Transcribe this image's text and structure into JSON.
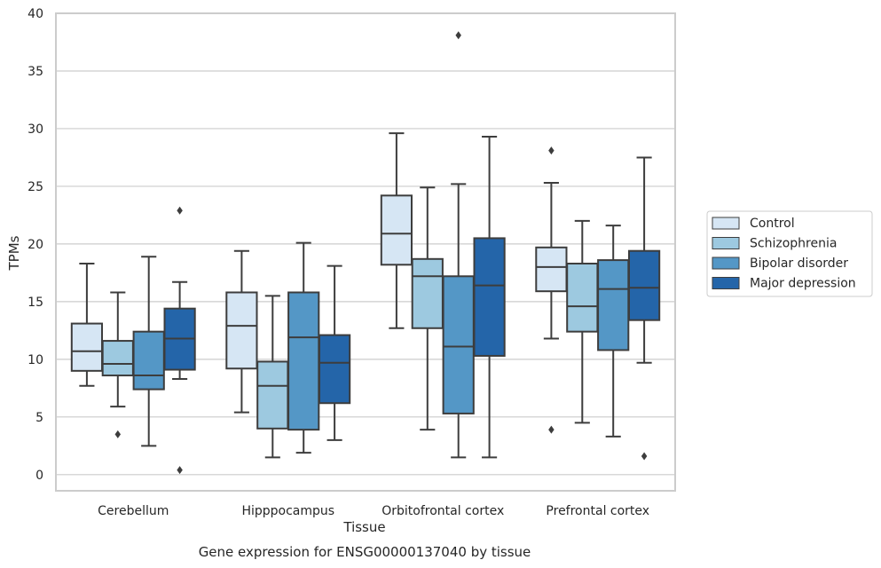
{
  "chart_data": {
    "type": "box",
    "title": "",
    "caption": "Gene expression for ENSG00000137040 by tissue",
    "xlabel": "Tissue",
    "ylabel": "TPMs",
    "ylim": [
      -1.4,
      40
    ],
    "yticks": [
      0,
      5,
      10,
      15,
      20,
      25,
      30,
      35,
      40
    ],
    "grid": "horizontal",
    "legend_position": "right",
    "categories": [
      "Cerebellum",
      "Hipppocampus",
      "Orbitofrontal cortex",
      "Prefrontal cortex"
    ],
    "series": [
      {
        "name": "Control",
        "color": "#d6e6f4",
        "boxes": [
          {
            "whislo": 7.7,
            "q1": 9.0,
            "med": 10.7,
            "q3": 13.1,
            "whishi": 18.3,
            "fliers": []
          },
          {
            "whislo": 5.4,
            "q1": 9.2,
            "med": 12.9,
            "q3": 15.8,
            "whishi": 19.4,
            "fliers": []
          },
          {
            "whislo": 12.7,
            "q1": 18.2,
            "med": 20.9,
            "q3": 24.2,
            "whishi": 29.6,
            "fliers": []
          },
          {
            "whislo": 11.8,
            "q1": 15.9,
            "med": 18.0,
            "q3": 19.7,
            "whishi": 25.3,
            "fliers": [
              28.1,
              3.9
            ]
          }
        ]
      },
      {
        "name": "Schizophrenia",
        "color": "#9dc9e0",
        "boxes": [
          {
            "whislo": 5.9,
            "q1": 8.6,
            "med": 9.6,
            "q3": 11.6,
            "whishi": 15.8,
            "fliers": [
              3.5
            ]
          },
          {
            "whislo": 1.5,
            "q1": 4.0,
            "med": 7.7,
            "q3": 9.8,
            "whishi": 15.5,
            "fliers": []
          },
          {
            "whislo": 3.9,
            "q1": 12.7,
            "med": 17.2,
            "q3": 18.7,
            "whishi": 24.9,
            "fliers": []
          },
          {
            "whislo": 4.5,
            "q1": 12.4,
            "med": 14.6,
            "q3": 18.3,
            "whishi": 22.0,
            "fliers": []
          }
        ]
      },
      {
        "name": "Bipolar disorder",
        "color": "#5497c6",
        "boxes": [
          {
            "whislo": 2.5,
            "q1": 7.4,
            "med": 8.6,
            "q3": 12.4,
            "whishi": 18.9,
            "fliers": []
          },
          {
            "whislo": 1.9,
            "q1": 3.9,
            "med": 11.9,
            "q3": 15.8,
            "whishi": 20.1,
            "fliers": []
          },
          {
            "whislo": 1.5,
            "q1": 5.3,
            "med": 11.1,
            "q3": 17.2,
            "whishi": 25.2,
            "fliers": [
              38.1
            ]
          },
          {
            "whislo": 3.3,
            "q1": 10.8,
            "med": 16.1,
            "q3": 18.6,
            "whishi": 21.6,
            "fliers": []
          }
        ]
      },
      {
        "name": "Major depression",
        "color": "#2465a9",
        "boxes": [
          {
            "whislo": 8.3,
            "q1": 9.1,
            "med": 11.8,
            "q3": 14.4,
            "whishi": 16.7,
            "fliers": [
              22.9,
              0.4
            ]
          },
          {
            "whislo": 3.0,
            "q1": 6.2,
            "med": 9.7,
            "q3": 12.1,
            "whishi": 18.1,
            "fliers": []
          },
          {
            "whislo": 1.5,
            "q1": 10.3,
            "med": 16.4,
            "q3": 20.5,
            "whishi": 29.3,
            "fliers": []
          },
          {
            "whislo": 9.7,
            "q1": 13.4,
            "med": 16.2,
            "q3": 19.4,
            "whishi": 27.5,
            "fliers": [
              1.6
            ]
          }
        ]
      }
    ]
  }
}
